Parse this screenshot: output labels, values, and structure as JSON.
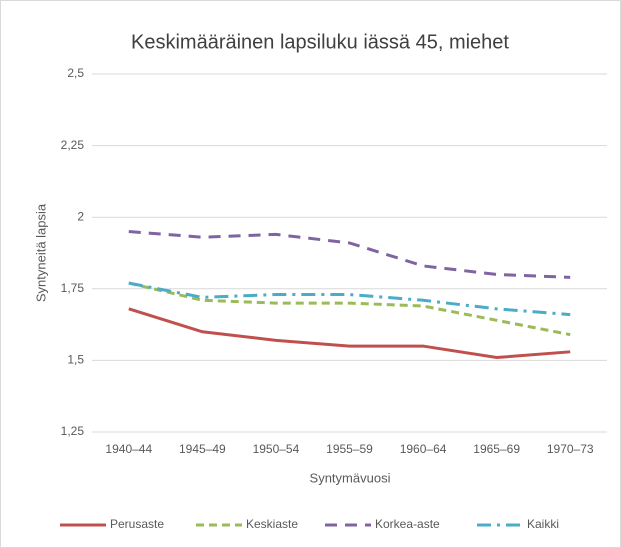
{
  "chart_data": {
    "type": "line",
    "title": "Keskimääräinen lapsiluku iässä 45, miehet",
    "x_label": "Syntymävuosi",
    "y_label": "Syntyneitä lapsia",
    "categories": [
      "1940–44",
      "1945–49",
      "1950–54",
      "1955–59",
      "1960–64",
      "1965–69",
      "1970–73"
    ],
    "series": [
      {
        "name": "Perusaste",
        "color": "#c0504d",
        "values": [
          1.68,
          1.6,
          1.57,
          1.55,
          1.55,
          1.51,
          1.53
        ]
      },
      {
        "name": "Keskiaste",
        "color": "#9bbb59",
        "values": [
          1.77,
          1.71,
          1.7,
          1.7,
          1.69,
          1.64,
          1.59
        ]
      },
      {
        "name": "Korkea-aste",
        "color": "#8064a2",
        "values": [
          1.95,
          1.93,
          1.94,
          1.91,
          1.83,
          1.8,
          1.79
        ]
      },
      {
        "name": "Kaikki",
        "color": "#4bacc6",
        "values": [
          1.77,
          1.72,
          1.73,
          1.73,
          1.71,
          1.68,
          1.66
        ]
      }
    ],
    "ylim": [
      1.25,
      2.5
    ],
    "yticks": [
      {
        "value": 1.25,
        "label": "1,25"
      },
      {
        "value": 1.5,
        "label": "1,5"
      },
      {
        "value": 1.75,
        "label": "1,75"
      },
      2,
      {
        "value": 2.25,
        "label": "2,25"
      },
      {
        "value": 2.5,
        "label": "2,5"
      }
    ],
    "grid": true,
    "legend": "bottom"
  }
}
